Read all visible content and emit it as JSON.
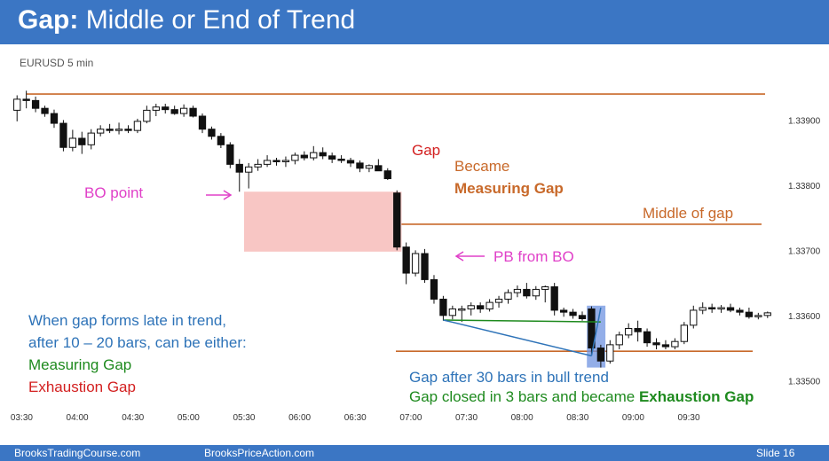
{
  "header": {
    "title_bold": "Gap:",
    "title_rest": "Middle or End of Trend"
  },
  "symbol": "EURUSD 5 min",
  "annotations": {
    "gap": "Gap",
    "became": "Became",
    "measuring_gap": "Measuring Gap",
    "middle_of_gap": "Middle of gap",
    "bo_point": "BO point",
    "pb_from_bo": "PB from BO",
    "late_1": "When gap forms late in trend,",
    "late_2": "after 10 – 20 bars, can be either:",
    "opt_measuring": "Measuring Gap",
    "opt_exhaustion": "Exhaustion Gap",
    "gap_after": "Gap after 30 bars in bull trend",
    "gap_closed": "Gap closed in 3 bars and became ",
    "exhaustion_gap": "Exhaustion Gap"
  },
  "footer": {
    "left": "BrooksTradingCourse.com",
    "center": "BrooksPriceAction.com",
    "slide": "Slide 16"
  },
  "colors": {
    "title_bar": "#3b76c4",
    "magenta": "#e040c8",
    "orange": "#c8692a",
    "blue": "#2e73b8",
    "green": "#1e8a1e",
    "red": "#d32020",
    "pink_box": "#f8c6c4",
    "blue_box": "#6f93e0"
  },
  "chart_data": {
    "type": "candlestick",
    "x_ticks": [
      "03:30",
      "04:00",
      "04:30",
      "05:00",
      "05:30",
      "06:00",
      "06:30",
      "07:00",
      "07:30",
      "08:00",
      "08:30",
      "09:00",
      "09:30"
    ],
    "y_ticks": [
      "1.33500",
      "1.33600",
      "1.33700",
      "1.33800",
      "1.33900"
    ],
    "ylim": [
      1.33465,
      1.33955
    ],
    "bars": [
      [
        1.33915,
        1.33938,
        1.33898,
        1.33932
      ],
      [
        1.33932,
        1.33945,
        1.33918,
        1.3393
      ],
      [
        1.3393,
        1.33936,
        1.33912,
        1.33918
      ],
      [
        1.33918,
        1.33922,
        1.33905,
        1.3391
      ],
      [
        1.3391,
        1.33916,
        1.33888,
        1.33895
      ],
      [
        1.33895,
        1.339,
        1.33852,
        1.33858
      ],
      [
        1.33858,
        1.33885,
        1.33852,
        1.33872
      ],
      [
        1.33872,
        1.33882,
        1.33848,
        1.33862
      ],
      [
        1.33862,
        1.33886,
        1.33855,
        1.3388
      ],
      [
        1.3388,
        1.33892,
        1.33875,
        1.33886
      ],
      [
        1.33886,
        1.33894,
        1.3388,
        1.33884
      ],
      [
        1.33884,
        1.33896,
        1.33878,
        1.33886
      ],
      [
        1.33886,
        1.33892,
        1.3388,
        1.33884
      ],
      [
        1.33884,
        1.33902,
        1.3388,
        1.33898
      ],
      [
        1.33898,
        1.33922,
        1.33895,
        1.33915
      ],
      [
        1.33915,
        1.33925,
        1.33906,
        1.3392
      ],
      [
        1.3392,
        1.33925,
        1.3391,
        1.33916
      ],
      [
        1.33916,
        1.33922,
        1.33908,
        1.3391
      ],
      [
        1.3391,
        1.33924,
        1.33905,
        1.33918
      ],
      [
        1.33918,
        1.33922,
        1.33904,
        1.33906
      ],
      [
        1.33906,
        1.3391,
        1.3388,
        1.33886
      ],
      [
        1.33886,
        1.3389,
        1.3387,
        1.33875
      ],
      [
        1.33875,
        1.3388,
        1.33857,
        1.33862
      ],
      [
        1.33862,
        1.33866,
        1.33826,
        1.33832
      ],
      [
        1.33832,
        1.3384,
        1.3379,
        1.3382
      ],
      [
        1.3382,
        1.33834,
        1.33795,
        1.33828
      ],
      [
        1.33828,
        1.3384,
        1.33822,
        1.33832
      ],
      [
        1.33832,
        1.33846,
        1.33828,
        1.33838
      ],
      [
        1.33838,
        1.33842,
        1.3383,
        1.33836
      ],
      [
        1.33836,
        1.33844,
        1.33828,
        1.33838
      ],
      [
        1.33838,
        1.3385,
        1.33832,
        1.33846
      ],
      [
        1.33846,
        1.33852,
        1.33838,
        1.33842
      ],
      [
        1.33842,
        1.3386,
        1.33838,
        1.3385
      ],
      [
        1.3385,
        1.33858,
        1.3384,
        1.33845
      ],
      [
        1.33845,
        1.3385,
        1.33834,
        1.3384
      ],
      [
        1.3384,
        1.33846,
        1.33834,
        1.33838
      ],
      [
        1.33838,
        1.33842,
        1.33828,
        1.33834
      ],
      [
        1.33834,
        1.33838,
        1.3382,
        1.33826
      ],
      [
        1.33826,
        1.33832,
        1.3382,
        1.3383
      ],
      [
        1.3383,
        1.3384,
        1.33825,
        1.33822
      ],
      [
        1.33822,
        1.33826,
        1.33808,
        1.3381
      ],
      [
        1.33788,
        1.33792,
        1.337,
        1.33705
      ],
      [
        1.33705,
        1.33712,
        1.33648,
        1.33665
      ],
      [
        1.33665,
        1.337,
        1.3366,
        1.33695
      ],
      [
        1.33695,
        1.33702,
        1.3365,
        1.33655
      ],
      [
        1.33655,
        1.33662,
        1.33618,
        1.33625
      ],
      [
        1.33625,
        1.3363,
        1.33592,
        1.336
      ],
      [
        1.336,
        1.33615,
        1.33594,
        1.3361
      ],
      [
        1.3361,
        1.33615,
        1.3359,
        1.3361
      ],
      [
        1.3361,
        1.3362,
        1.336,
        1.33615
      ],
      [
        1.33615,
        1.3362,
        1.33604,
        1.3361
      ],
      [
        1.3361,
        1.33625,
        1.33606,
        1.3362
      ],
      [
        1.3362,
        1.3363,
        1.33612,
        1.33625
      ],
      [
        1.33625,
        1.3364,
        1.33618,
        1.33635
      ],
      [
        1.33635,
        1.33646,
        1.33628,
        1.3364
      ],
      [
        1.3364,
        1.3365,
        1.33626,
        1.3363
      ],
      [
        1.3363,
        1.33645,
        1.33624,
        1.3364
      ],
      [
        1.3364,
        1.33646,
        1.3362,
        1.33644
      ],
      [
        1.33644,
        1.3365,
        1.336,
        1.33608
      ],
      [
        1.33608,
        1.33612,
        1.33598,
        1.33605
      ],
      [
        1.33605,
        1.3361,
        1.33595,
        1.336
      ],
      [
        1.336,
        1.33606,
        1.33592,
        1.33595
      ],
      [
        1.3361,
        1.33614,
        1.3354,
        1.3355
      ],
      [
        1.3355,
        1.33555,
        1.3352,
        1.3353
      ],
      [
        1.3353,
        1.33562,
        1.33526,
        1.33555
      ],
      [
        1.33555,
        1.33575,
        1.33548,
        1.3357
      ],
      [
        1.3357,
        1.33588,
        1.33565,
        1.3358
      ],
      [
        1.3358,
        1.33592,
        1.3356,
        1.33575
      ],
      [
        1.33575,
        1.3358,
        1.33552,
        1.33558
      ],
      [
        1.33558,
        1.33565,
        1.33548,
        1.33555
      ],
      [
        1.33555,
        1.33562,
        1.33548,
        1.33552
      ],
      [
        1.33552,
        1.33565,
        1.33548,
        1.3356
      ],
      [
        1.3356,
        1.3359,
        1.33556,
        1.33585
      ],
      [
        1.33585,
        1.33615,
        1.3358,
        1.33608
      ],
      [
        1.33608,
        1.3362,
        1.33602,
        1.33612
      ],
      [
        1.33612,
        1.33618,
        1.33604,
        1.3361
      ],
      [
        1.3361,
        1.33616,
        1.33604,
        1.33612
      ],
      [
        1.33612,
        1.33618,
        1.33605,
        1.33608
      ],
      [
        1.33608,
        1.33612,
        1.336,
        1.33605
      ],
      [
        1.33605,
        1.33612,
        1.33595,
        1.33598
      ],
      [
        1.33598,
        1.33604,
        1.33594,
        1.336
      ],
      [
        1.336,
        1.33606,
        1.33596,
        1.33604
      ]
    ],
    "levels": [
      {
        "y": 1.3394,
        "color": "#c8692a"
      },
      {
        "y": 1.3374,
        "color": "#c8692a"
      },
      {
        "y": 1.33545,
        "color": "#c8692a"
      }
    ],
    "gap_box": {
      "x0": 24.5,
      "x1": 41.5,
      "y0": 1.3379,
      "y1": 1.33698
    },
    "exhaustion_box": {
      "x0": 61.5,
      "x1": 63.5,
      "y0": 1.33615,
      "y1": 1.3352
    }
  }
}
